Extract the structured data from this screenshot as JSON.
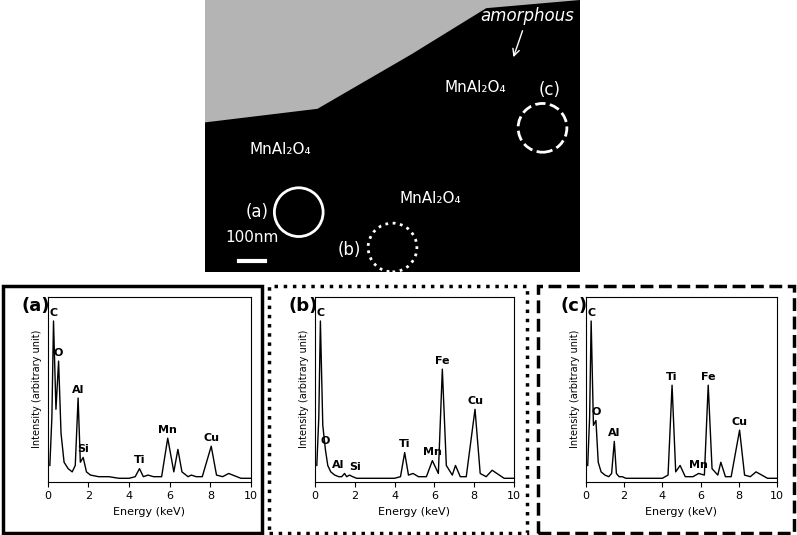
{
  "micrograph": {
    "region_labels": [
      "amorphous",
      "MnAl₂O₄",
      "MnAl₂O₄",
      "MnAl₂O₄"
    ],
    "markers": [
      "(a)",
      "(b)",
      "(c)"
    ],
    "scale_bar": "100nm"
  },
  "chart_data": [
    {
      "type": "line",
      "title": "(a)",
      "x_label": "Energy (keV)",
      "y_label": "Intensity (arbitrary unit)",
      "xlim": [
        0,
        10
      ],
      "xticks": [
        0,
        2,
        4,
        6,
        8,
        10
      ],
      "ylim": [
        0,
        115
      ],
      "tick_labels": "x",
      "color": "#000000",
      "x": [
        0.1,
        0.2,
        0.28,
        0.4,
        0.53,
        0.65,
        0.8,
        1.0,
        1.2,
        1.35,
        1.49,
        1.6,
        1.74,
        1.9,
        2.1,
        2.5,
        3.0,
        3.5,
        4.0,
        4.3,
        4.51,
        4.7,
        4.93,
        5.2,
        5.6,
        5.9,
        6.2,
        6.4,
        6.6,
        6.9,
        7.06,
        7.3,
        7.6,
        8.04,
        8.3,
        8.6,
        8.9,
        9.5,
        10.0
      ],
      "values": [
        10,
        40,
        100,
        45,
        75,
        30,
        12,
        8,
        6,
        10,
        52,
        12,
        15,
        6,
        4,
        3,
        3,
        2,
        2,
        3,
        8,
        3,
        4,
        3,
        3,
        27,
        6,
        20,
        6,
        3,
        4,
        3,
        3,
        22,
        4,
        3,
        5,
        2,
        2
      ],
      "annotations": [
        {
          "text": "C",
          "x": 0.28
        },
        {
          "text": "O",
          "x": 0.53
        },
        {
          "text": "Al",
          "x": 1.49
        },
        {
          "text": "Si",
          "x": 1.74
        },
        {
          "text": "Ti",
          "x": 4.51
        },
        {
          "text": "Mn",
          "x": 5.9
        },
        {
          "text": "Cu",
          "x": 8.04
        }
      ]
    },
    {
      "type": "line",
      "title": "(b)",
      "x_label": "Energy (keV)",
      "y_label": "Intensity (arbitrary unit)",
      "xlim": [
        0,
        10
      ],
      "xticks": [
        0,
        2,
        4,
        6,
        8,
        10
      ],
      "ylim": [
        0,
        115
      ],
      "tick_labels": "x",
      "color": "#000000",
      "x": [
        0.1,
        0.2,
        0.28,
        0.4,
        0.53,
        0.65,
        0.8,
        1.0,
        1.2,
        1.35,
        1.49,
        1.6,
        1.74,
        1.9,
        2.1,
        2.5,
        3.0,
        3.5,
        4.0,
        4.3,
        4.51,
        4.7,
        4.93,
        5.2,
        5.6,
        5.9,
        6.2,
        6.4,
        6.6,
        6.9,
        7.06,
        7.3,
        7.6,
        8.04,
        8.3,
        8.6,
        8.9,
        9.5,
        10.0
      ],
      "values": [
        10,
        40,
        100,
        35,
        20,
        10,
        6,
        4,
        3,
        3,
        5,
        3,
        4,
        3,
        2,
        2,
        2,
        2,
        2,
        3,
        18,
        4,
        5,
        3,
        3,
        13,
        5,
        70,
        10,
        4,
        10,
        3,
        3,
        45,
        5,
        3,
        7,
        2,
        2
      ],
      "annotations": [
        {
          "text": "C",
          "x": 0.28
        },
        {
          "text": "O",
          "x": 0.53
        },
        {
          "text": "Al",
          "x": 1.49
        },
        {
          "text": "Si",
          "x": 1.74
        },
        {
          "text": "Ti",
          "x": 4.51
        },
        {
          "text": "Mn",
          "x": 5.9
        },
        {
          "text": "Fe",
          "x": 6.4
        },
        {
          "text": "Cu",
          "x": 8.04
        }
      ]
    },
    {
      "type": "line",
      "title": "(c)",
      "x_label": "Energy (keV)",
      "y_label": "Intensity (arbitrary unit)",
      "xlim": [
        0,
        10
      ],
      "xticks": [
        0,
        2,
        4,
        6,
        8,
        10
      ],
      "ylim": [
        0,
        115
      ],
      "tick_labels": "x",
      "color": "#000000",
      "x": [
        0.1,
        0.2,
        0.28,
        0.4,
        0.53,
        0.65,
        0.8,
        1.0,
        1.2,
        1.35,
        1.49,
        1.6,
        1.74,
        1.9,
        2.1,
        2.5,
        3.0,
        3.5,
        4.0,
        4.3,
        4.51,
        4.7,
        4.93,
        5.2,
        5.6,
        5.9,
        6.2,
        6.4,
        6.6,
        6.9,
        7.06,
        7.3,
        7.6,
        8.04,
        8.3,
        8.6,
        8.9,
        9.5,
        10.0
      ],
      "values": [
        10,
        40,
        100,
        35,
        38,
        12,
        6,
        4,
        3,
        5,
        25,
        5,
        3,
        3,
        2,
        2,
        2,
        2,
        2,
        4,
        60,
        6,
        10,
        3,
        3,
        5,
        4,
        60,
        8,
        4,
        12,
        3,
        3,
        32,
        4,
        3,
        6,
        2,
        2
      ],
      "annotations": [
        {
          "text": "C",
          "x": 0.28
        },
        {
          "text": "O",
          "x": 0.53
        },
        {
          "text": "Al",
          "x": 1.49
        },
        {
          "text": "Ti",
          "x": 4.51
        },
        {
          "text": "Mn",
          "x": 5.9
        },
        {
          "text": "Fe",
          "x": 6.4
        },
        {
          "text": "Cu",
          "x": 8.04
        }
      ]
    }
  ]
}
